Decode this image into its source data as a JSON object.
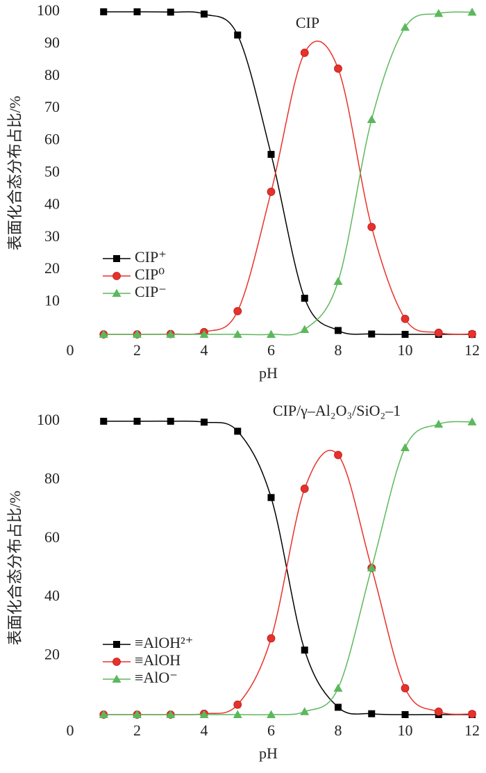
{
  "chart_data": [
    {
      "type": "line",
      "title": "CIP",
      "x_label": "pH",
      "y_label": "表面化合态分布占比/%",
      "x": [
        1,
        2,
        3,
        4,
        5,
        6,
        7,
        8,
        9,
        10,
        11,
        12
      ],
      "xlim": [
        0,
        12
      ],
      "xticks": [
        0,
        2,
        4,
        6,
        8,
        10,
        12
      ],
      "ylim": [
        0,
        100
      ],
      "yticks": [
        10,
        20,
        30,
        40,
        50,
        60,
        70,
        80,
        90,
        100
      ],
      "legend": "center left",
      "series": [
        {
          "name": "CIP⁺",
          "color": "#000000",
          "marker": "square",
          "values": [
            100,
            100,
            99.9,
            99.3,
            92.8,
            55.8,
            11.2,
            1.2,
            0.1,
            0,
            0,
            0
          ]
        },
        {
          "name": "CIP⁰",
          "color": "#e8312a",
          "marker": "circle",
          "values": [
            0,
            0,
            0.1,
            0.7,
            7.2,
            44.2,
            87.3,
            82.4,
            33.3,
            4.8,
            0.5,
            0.1
          ]
        },
        {
          "name": "CIP⁻",
          "color": "#5cb85c",
          "marker": "triangle",
          "values": [
            0,
            0,
            0,
            0,
            0,
            0,
            1.5,
            16.4,
            66.6,
            95.2,
            99.5,
            99.9
          ]
        }
      ]
    },
    {
      "type": "line",
      "title": "CIP/γ–Al₂O₃/SiO₂–1",
      "x_label": "pH",
      "y_label": "表面化合态分布占比/%",
      "x": [
        1,
        2,
        3,
        4,
        5,
        6,
        7,
        8,
        9,
        10,
        11,
        12
      ],
      "xlim": [
        0,
        12
      ],
      "xticks": [
        0,
        2,
        4,
        6,
        8,
        10,
        12
      ],
      "ylim": [
        0,
        100
      ],
      "yticks": [
        20,
        40,
        60,
        80,
        100
      ],
      "legend": "lower left",
      "series": [
        {
          "name": "≡AlOH²⁺",
          "color": "#000000",
          "marker": "square",
          "values": [
            100,
            100,
            100,
            99.7,
            96.6,
            74,
            22,
            2.5,
            0.3,
            0,
            0,
            0
          ]
        },
        {
          "name": "≡AlOH",
          "color": "#e8312a",
          "marker": "circle",
          "values": [
            0,
            0,
            0,
            0.3,
            3.4,
            26,
            77,
            88.5,
            50,
            9,
            1,
            0.2
          ]
        },
        {
          "name": "≡AlO⁻",
          "color": "#5cb85c",
          "marker": "triangle",
          "values": [
            0,
            0,
            0,
            0,
            0,
            0,
            1,
            9,
            50,
            91,
            99,
            99.8
          ]
        }
      ]
    }
  ]
}
